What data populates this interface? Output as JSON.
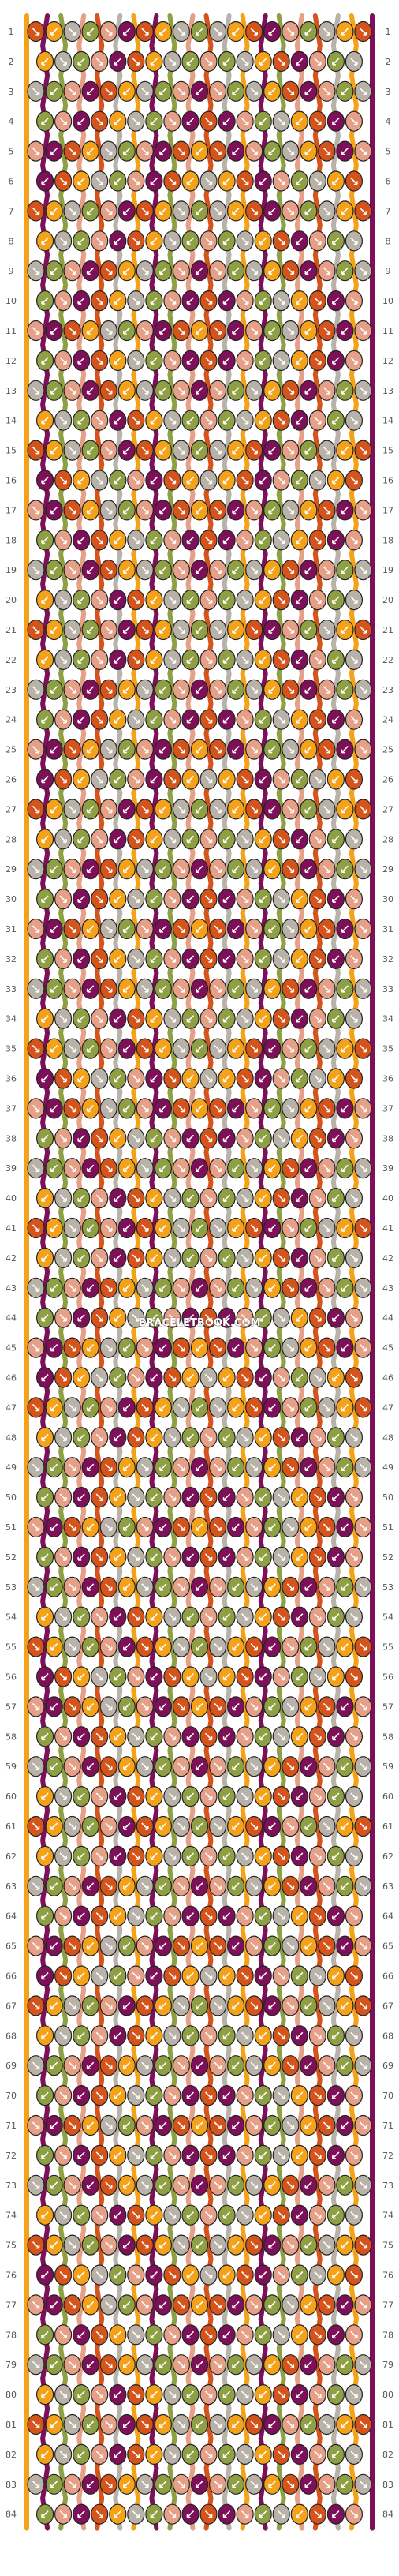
{
  "watermark": "BRACELETBOOK.COM",
  "row_labels": [
    "1",
    "2",
    "3",
    "4",
    "5",
    "6",
    "7",
    "8",
    "9",
    "10",
    "11",
    "12",
    "13",
    "14",
    "15",
    "16",
    "17",
    "18",
    "19",
    "20",
    "21",
    "22",
    "23",
    "24",
    "25",
    "26",
    "27",
    "28",
    "29",
    "30",
    "31",
    "32",
    "33",
    "34",
    "35",
    "36",
    "37",
    "38",
    "39",
    "40",
    "41",
    "42",
    "43",
    "44",
    "45",
    "46",
    "47",
    "48",
    "49",
    "50",
    "51",
    "52",
    "53",
    "54",
    "55",
    "56",
    "57",
    "58",
    "59",
    "60",
    "61",
    "62",
    "63",
    "64",
    "65",
    "66",
    "67",
    "68",
    "69",
    "70",
    "71",
    "72",
    "73",
    "74",
    "75",
    "76",
    "77",
    "78",
    "79",
    "80",
    "81",
    "82",
    "83",
    "84"
  ],
  "colors": {
    "orange": "#f5a21b",
    "burnt_orange": "#d4541c",
    "plum": "#7d1059",
    "salmon": "#e6a088",
    "olive": "#8ea043",
    "grey": "#b9b2a8"
  },
  "strand_order": [
    "orange",
    "plum",
    "olive",
    "salmon",
    "burnt_orange",
    "grey",
    "orange",
    "plum",
    "olive",
    "salmon",
    "burnt_orange",
    "grey",
    "orange",
    "plum",
    "olive",
    "salmon",
    "burnt_orange",
    "grey",
    "orange",
    "plum"
  ]
}
